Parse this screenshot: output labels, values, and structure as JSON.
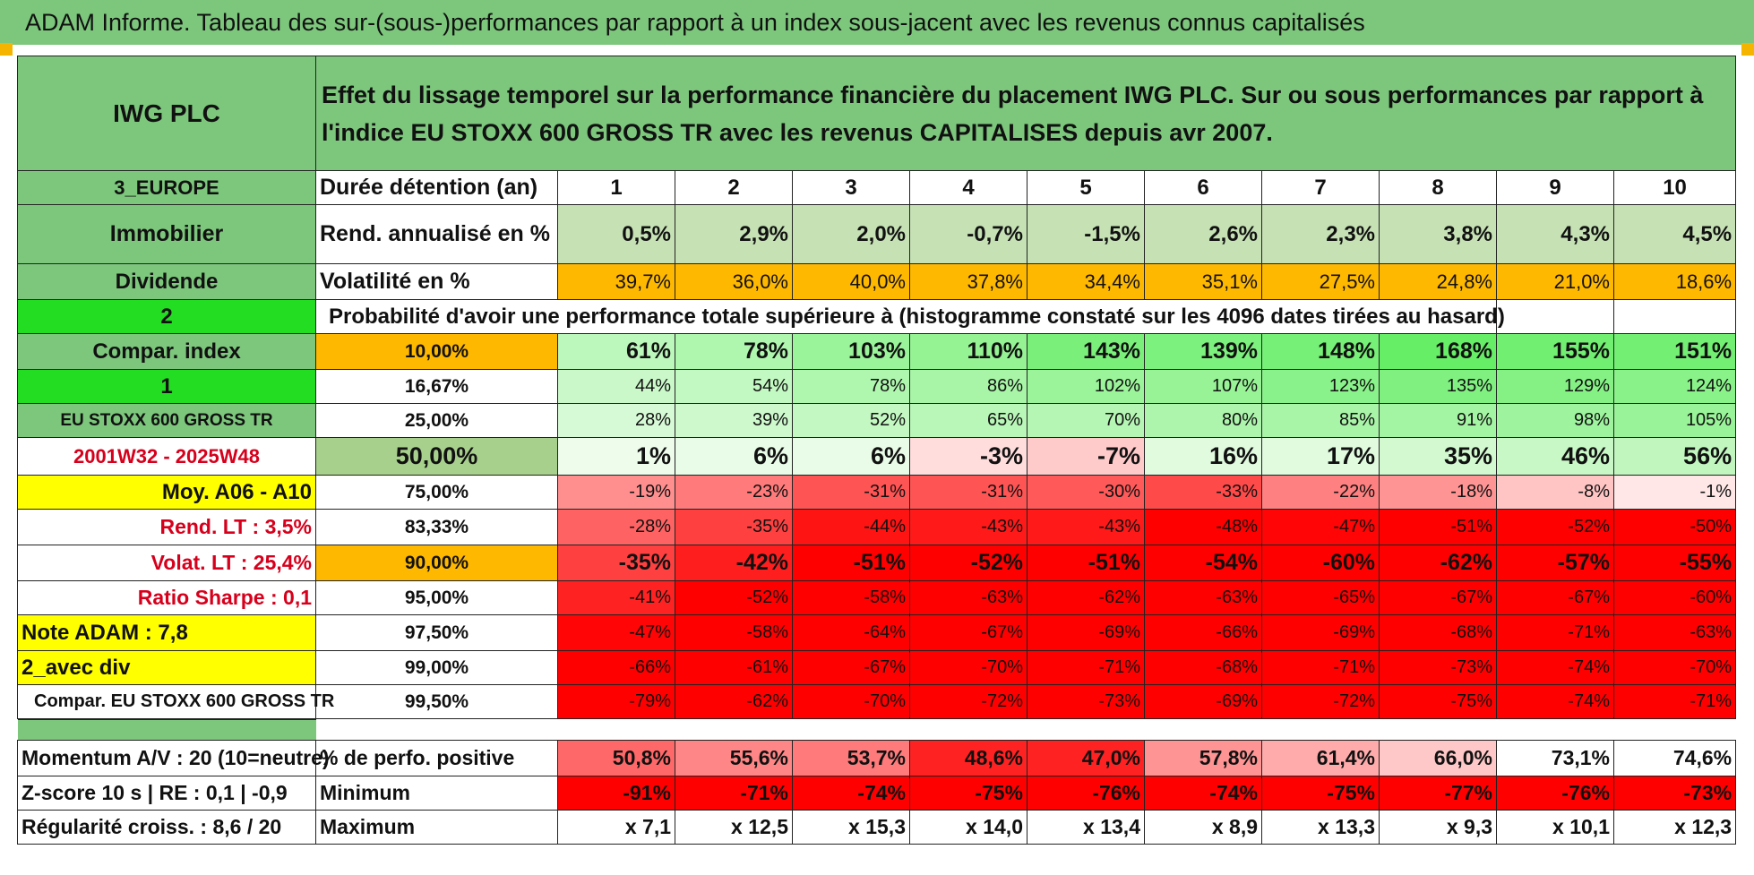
{
  "banner": "ADAM Informe. Tableau des sur-(sous-)performances par rapport à un index sous-jacent avec les revenus connus capitalisés",
  "header": {
    "stock": "IWG PLC",
    "description": "Effet du lissage temporel sur la performance financière du placement IWG PLC. Sur ou sous performances par rapport à l'indice EU STOXX 600 GROSS TR avec les revenus CAPITALISES depuis avr 2007."
  },
  "left": {
    "region": "3_EUROPE",
    "sector": "Immobilier",
    "type": "Dividende",
    "num_a": "2",
    "compar": "Compar. index",
    "num_b": "1",
    "index": "EU STOXX 600 GROSS TR",
    "period": "2001W32 - 2025W48",
    "moy": "Moy. A06 - A10",
    "rend_lt": "Rend. LT :    3,5%",
    "volat_lt": "Volat. LT :    25,4%",
    "sharpe": "Ratio Sharpe :     0,1",
    "note": "Note ADAM : 7,8",
    "avec_div": "2_avec div",
    "compar_index": "Compar. EU STOXX 600 GROSS TR"
  },
  "rows_labels": {
    "duree": "Durée détention (an)",
    "rend": "Rend. annualisé en %",
    "vol": "Volatilité en %",
    "prob": "Probabilité d'avoir une performance totale supérieure à (histogramme constaté sur les 4096 dates tirées au hasard)"
  },
  "years": [
    "1",
    "2",
    "3",
    "4",
    "5",
    "6",
    "7",
    "8",
    "9",
    "10"
  ],
  "rend": [
    "0,5%",
    "2,9%",
    "2,0%",
    "-0,7%",
    "-1,5%",
    "2,6%",
    "2,3%",
    "3,8%",
    "4,3%",
    "4,5%"
  ],
  "vol": [
    "39,7%",
    "36,0%",
    "40,0%",
    "37,8%",
    "34,4%",
    "35,1%",
    "27,5%",
    "24,8%",
    "21,0%",
    "18,6%"
  ],
  "prob_rows": [
    {
      "thr": "10,00%",
      "vals": [
        "61%",
        "78%",
        "103%",
        "110%",
        "143%",
        "139%",
        "148%",
        "168%",
        "155%",
        "151%"
      ]
    },
    {
      "thr": "16,67%",
      "vals": [
        "44%",
        "54%",
        "78%",
        "86%",
        "102%",
        "107%",
        "123%",
        "135%",
        "129%",
        "124%"
      ]
    },
    {
      "thr": "25,00%",
      "vals": [
        "28%",
        "39%",
        "52%",
        "65%",
        "70%",
        "80%",
        "85%",
        "91%",
        "98%",
        "105%"
      ]
    },
    {
      "thr": "50,00%",
      "vals": [
        "1%",
        "6%",
        "6%",
        "-3%",
        "-7%",
        "16%",
        "17%",
        "35%",
        "46%",
        "56%"
      ]
    },
    {
      "thr": "75,00%",
      "vals": [
        "-19%",
        "-23%",
        "-31%",
        "-31%",
        "-30%",
        "-33%",
        "-22%",
        "-18%",
        "-8%",
        "-1%"
      ]
    },
    {
      "thr": "83,33%",
      "vals": [
        "-28%",
        "-35%",
        "-44%",
        "-43%",
        "-43%",
        "-48%",
        "-47%",
        "-51%",
        "-52%",
        "-50%"
      ]
    },
    {
      "thr": "90,00%",
      "vals": [
        "-35%",
        "-42%",
        "-51%",
        "-52%",
        "-51%",
        "-54%",
        "-60%",
        "-62%",
        "-57%",
        "-55%"
      ]
    },
    {
      "thr": "95,00%",
      "vals": [
        "-41%",
        "-52%",
        "-58%",
        "-63%",
        "-62%",
        "-63%",
        "-65%",
        "-67%",
        "-67%",
        "-60%"
      ]
    },
    {
      "thr": "97,50%",
      "vals": [
        "-47%",
        "-58%",
        "-64%",
        "-67%",
        "-69%",
        "-66%",
        "-69%",
        "-68%",
        "-71%",
        "-63%"
      ]
    },
    {
      "thr": "99,00%",
      "vals": [
        "-66%",
        "-61%",
        "-67%",
        "-70%",
        "-71%",
        "-68%",
        "-71%",
        "-73%",
        "-74%",
        "-70%"
      ]
    },
    {
      "thr": "99,50%",
      "vals": [
        "-79%",
        "-62%",
        "-70%",
        "-72%",
        "-73%",
        "-69%",
        "-72%",
        "-75%",
        "-74%",
        "-71%"
      ]
    }
  ],
  "bottom": {
    "momentum": "Momentum A/V : 20 (10=neutre)",
    "zscore": "Z-score 10 s | RE : 0,1 | -0,9",
    "regul": "Régularité croiss. : 8,6 / 20",
    "pos_label": "% de perfo. positive",
    "min_label": "Minimum",
    "max_label": "Maximum",
    "pos": [
      "50,8%",
      "55,6%",
      "53,7%",
      "48,6%",
      "47,0%",
      "57,8%",
      "61,4%",
      "66,0%",
      "73,1%",
      "74,6%"
    ],
    "min": [
      "-91%",
      "-71%",
      "-74%",
      "-75%",
      "-76%",
      "-74%",
      "-75%",
      "-77%",
      "-76%",
      "-73%"
    ],
    "max": [
      "x 7,1",
      "x 12,5",
      "x 15,3",
      "x 14,0",
      "x 13,4",
      "x 8,9",
      "x 13,3",
      "x 9,3",
      "x 10,1",
      "x 12,3"
    ]
  },
  "colors": {
    "header_green": "#7dc77d",
    "vol_orange": "#ffb800",
    "left_yellow": "#ffff00",
    "bright_green": "#22dd22",
    "red_strong": "#ff0000"
  }
}
